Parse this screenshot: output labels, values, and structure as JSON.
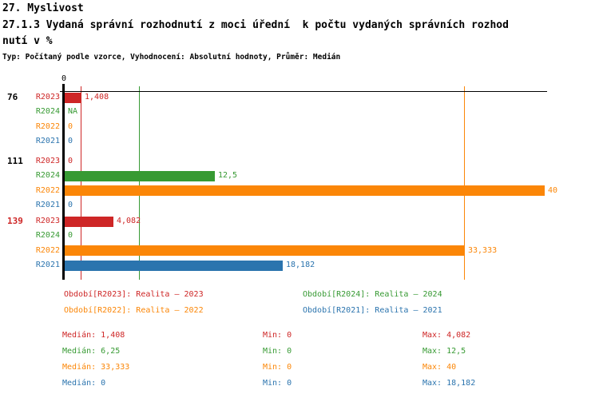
{
  "header": {
    "title_line1": "27. Myslivost",
    "title_line2": "27.1.3 Vydaná správní rozhodnutí z moci úřední  k počtu vydaných správních rozhod",
    "title_line3": "nutí v %",
    "meta": "Typ: Počítaný podle vzorce, Vyhodnocení: Absolutní hodnoty, Průměr: Medián"
  },
  "colors": {
    "R2023": "#CE2626",
    "R2024": "#379A33",
    "R2022": "#FB8607",
    "R2021": "#2B74AE",
    "axis": "#000000",
    "group_label_highlight": "#CE2626",
    "group_label_normal": "#000000"
  },
  "chart_data": {
    "type": "bar",
    "orientation": "horizontal",
    "value_unit": "%",
    "xlim": [
      0,
      40.3
    ],
    "axis_tick_label": "0",
    "grid": false,
    "series_order": [
      "R2023",
      "R2024",
      "R2022",
      "R2021"
    ],
    "groups": [
      {
        "label": "76",
        "label_color": "#000000",
        "bars": [
          {
            "series": "R2023",
            "value": 1.408,
            "display": "1,408"
          },
          {
            "series": "R2024",
            "value": null,
            "display": "NA"
          },
          {
            "series": "R2022",
            "value": 0,
            "display": "0"
          },
          {
            "series": "R2021",
            "value": 0,
            "display": "0"
          }
        ]
      },
      {
        "label": "111",
        "label_color": "#000000",
        "bars": [
          {
            "series": "R2023",
            "value": 0,
            "display": "0"
          },
          {
            "series": "R2024",
            "value": 12.5,
            "display": "12,5"
          },
          {
            "series": "R2022",
            "value": 40,
            "display": "40"
          },
          {
            "series": "R2021",
            "value": 0,
            "display": "0"
          }
        ]
      },
      {
        "label": "139",
        "label_color": "#CE2626",
        "bars": [
          {
            "series": "R2023",
            "value": 4.082,
            "display": "4,082"
          },
          {
            "series": "R2024",
            "value": 0,
            "display": "0"
          },
          {
            "series": "R2022",
            "value": 33.333,
            "display": "33,333"
          },
          {
            "series": "R2021",
            "value": 18.182,
            "display": "18,182"
          }
        ]
      }
    ],
    "median_lines": [
      {
        "series": "R2023",
        "value": 1.408
      },
      {
        "series": "R2024",
        "value": 6.25
      },
      {
        "series": "R2022",
        "value": 33.333
      },
      {
        "series": "R2021",
        "value": 0
      }
    ]
  },
  "legend": [
    {
      "series": "R2023",
      "text": "Období[R2023]: Realita – 2023"
    },
    {
      "series": "R2024",
      "text": "Období[R2024]: Realita – 2024"
    },
    {
      "series": "R2022",
      "text": "Období[R2022]: Realita – 2022"
    },
    {
      "series": "R2021",
      "text": "Období[R2021]: Realita – 2021"
    }
  ],
  "stats": [
    {
      "series": "R2023",
      "median": "Medián: 1,408",
      "min": "Min: 0",
      "max": "Max: 4,082"
    },
    {
      "series": "R2024",
      "median": "Medián: 6,25",
      "min": "Min: 0",
      "max": "Max: 12,5"
    },
    {
      "series": "R2022",
      "median": "Medián: 33,333",
      "min": "Min: 0",
      "max": "Max: 40"
    },
    {
      "series": "R2021",
      "median": "Medián: 0",
      "min": "Min: 0",
      "max": "Max: 18,182"
    }
  ]
}
